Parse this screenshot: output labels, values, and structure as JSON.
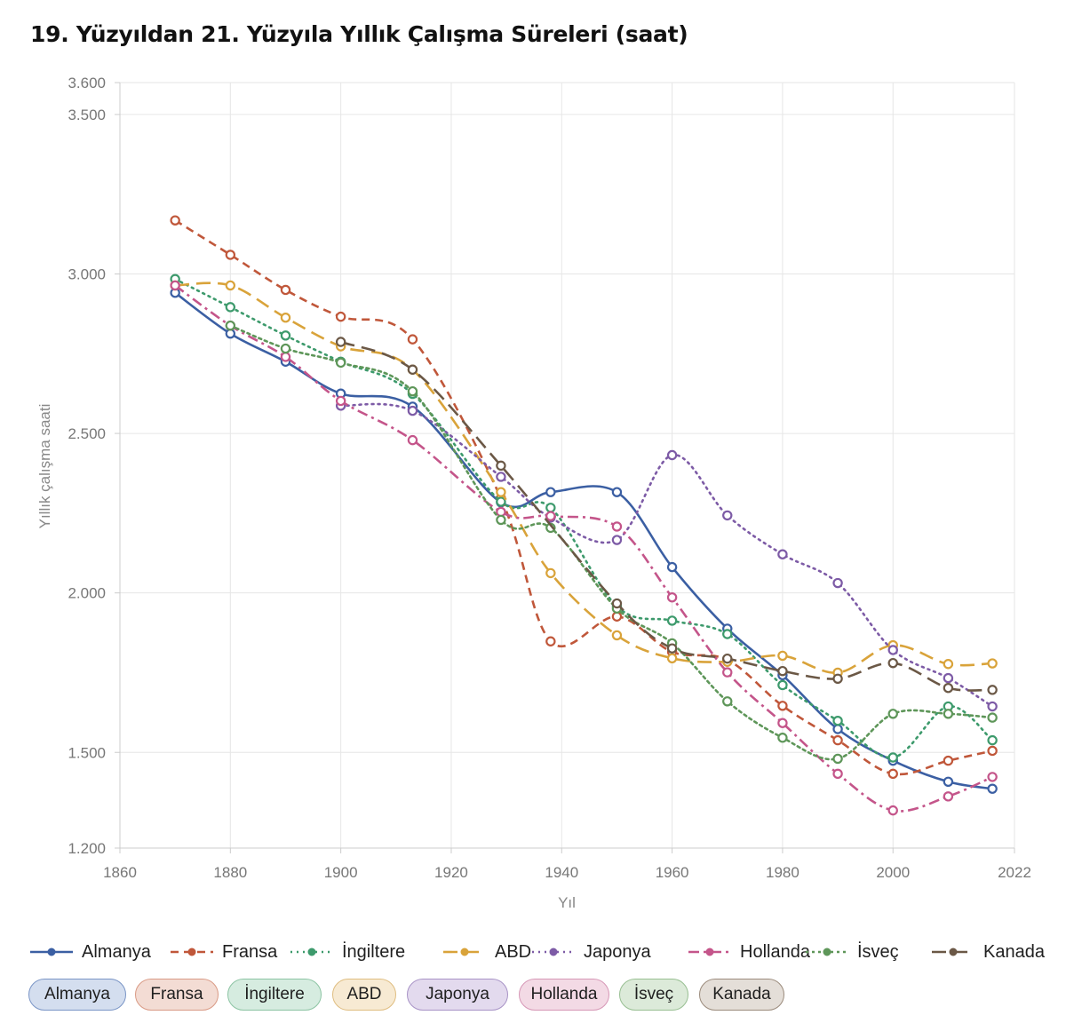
{
  "title": "19. Yüzyıldan 21. Yüzyıla Yıllık Çalışma Süreleri (saat)",
  "chart_data": {
    "type": "line",
    "title": "19. Yüzyıldan 21. Yüzyıla Yıllık Çalışma Süreleri (saat)",
    "xlabel": "Yıl",
    "ylabel": "Yıllık çalışma saati",
    "xlim": [
      1860,
      2022
    ],
    "ylim": [
      1200,
      3600
    ],
    "x_ticks": [
      1860,
      1880,
      1900,
      1920,
      1940,
      1960,
      1980,
      2000,
      2022
    ],
    "x_tick_labels": [
      "1860",
      "1880",
      "1900",
      "1920",
      "1940",
      "1960",
      "1980",
      "2000",
      "2022"
    ],
    "y_ticks": [
      1200,
      1500,
      2000,
      2500,
      3000,
      3500,
      3600
    ],
    "y_tick_labels": [
      "1.200",
      "1.500",
      "2.000",
      "2.500",
      "3.000",
      "3.500",
      "3.600"
    ],
    "grid": true,
    "legend_position": "bottom",
    "series": [
      {
        "name": "Almanya",
        "color": "#3b5fa3",
        "dash": "solid",
        "points": [
          [
            1870,
            2941
          ],
          [
            1880,
            2813
          ],
          [
            1890,
            2725
          ],
          [
            1900,
            2625
          ],
          [
            1913,
            2584
          ],
          [
            1929,
            2284
          ],
          [
            1938,
            2316
          ],
          [
            1950,
            2316
          ],
          [
            1960,
            2081
          ],
          [
            1970,
            1888
          ],
          [
            1980,
            1742
          ],
          [
            1990,
            1573
          ],
          [
            2000,
            1474
          ],
          [
            2010,
            1408
          ],
          [
            2018,
            1386
          ]
        ]
      },
      {
        "name": "Fransa",
        "color": "#c0573a",
        "dash": "dashed",
        "points": [
          [
            1870,
            3168
          ],
          [
            1880,
            3060
          ],
          [
            1890,
            2950
          ],
          [
            1900,
            2866
          ],
          [
            1913,
            2795
          ],
          [
            1929,
            2297
          ],
          [
            1938,
            1848
          ],
          [
            1950,
            1926
          ],
          [
            1960,
            1815
          ],
          [
            1970,
            1790
          ],
          [
            1980,
            1646
          ],
          [
            1990,
            1538
          ],
          [
            2000,
            1433
          ],
          [
            2010,
            1474
          ],
          [
            2018,
            1505
          ]
        ]
      },
      {
        "name": "İngiltere",
        "color": "#3d9a6c",
        "dash": "dotted",
        "points": [
          [
            1870,
            2984
          ],
          [
            1880,
            2896
          ],
          [
            1890,
            2807
          ],
          [
            1900,
            2725
          ],
          [
            1913,
            2624
          ],
          [
            1929,
            2286
          ],
          [
            1938,
            2267
          ],
          [
            1950,
            1958
          ],
          [
            1960,
            1913
          ],
          [
            1970,
            1871
          ],
          [
            1980,
            1711
          ],
          [
            1990,
            1599
          ],
          [
            2000,
            1484
          ],
          [
            2010,
            1644
          ],
          [
            2018,
            1538
          ]
        ]
      },
      {
        "name": "ABD",
        "color": "#d9a33a",
        "dash": "longdash",
        "points": [
          [
            1870,
            2964
          ],
          [
            1880,
            2964
          ],
          [
            1890,
            2863
          ],
          [
            1900,
            2773
          ],
          [
            1913,
            2700
          ],
          [
            1929,
            2316
          ],
          [
            1938,
            2062
          ],
          [
            1950,
            1867
          ],
          [
            1960,
            1795
          ],
          [
            1970,
            1784
          ],
          [
            1980,
            1803
          ],
          [
            1990,
            1750
          ],
          [
            2000,
            1836
          ],
          [
            2010,
            1777
          ],
          [
            2018,
            1779
          ]
        ]
      },
      {
        "name": "Japonya",
        "color": "#7d5ba6",
        "dash": "dotted",
        "points": [
          [
            1900,
            2587
          ],
          [
            1913,
            2571
          ],
          [
            1929,
            2364
          ],
          [
            1938,
            2236
          ],
          [
            1950,
            2166
          ],
          [
            1960,
            2432
          ],
          [
            1970,
            2243
          ],
          [
            1980,
            2121
          ],
          [
            1990,
            2031
          ],
          [
            2000,
            1821
          ],
          [
            2010,
            1733
          ],
          [
            2018,
            1644
          ]
        ]
      },
      {
        "name": "Hollanda",
        "color": "#c4558a",
        "dash": "dashdot",
        "points": [
          [
            1870,
            2964
          ],
          [
            1880,
            2838
          ],
          [
            1890,
            2740
          ],
          [
            1900,
            2602
          ],
          [
            1913,
            2479
          ],
          [
            1929,
            2254
          ],
          [
            1938,
            2241
          ],
          [
            1950,
            2208
          ],
          [
            1960,
            1986
          ],
          [
            1970,
            1751
          ],
          [
            1980,
            1592
          ],
          [
            1990,
            1433
          ],
          [
            2000,
            1318
          ],
          [
            2010,
            1362
          ],
          [
            2018,
            1423
          ]
        ]
      },
      {
        "name": "İsveç",
        "color": "#5e9659",
        "dash": "densedot",
        "points": [
          [
            1880,
            2838
          ],
          [
            1890,
            2766
          ],
          [
            1900,
            2722
          ],
          [
            1913,
            2632
          ],
          [
            1929,
            2229
          ],
          [
            1938,
            2204
          ],
          [
            1950,
            1951
          ],
          [
            1960,
            1842
          ],
          [
            1970,
            1660
          ],
          [
            1980,
            1546
          ],
          [
            1990,
            1480
          ],
          [
            2000,
            1621
          ],
          [
            2010,
            1621
          ],
          [
            2018,
            1609
          ]
        ]
      },
      {
        "name": "Kanada",
        "color": "#6b5846",
        "dash": "longdash",
        "points": [
          [
            1900,
            2787
          ],
          [
            1913,
            2700
          ],
          [
            1929,
            2399
          ],
          [
            1950,
            1967
          ],
          [
            1960,
            1826
          ],
          [
            1970,
            1794
          ],
          [
            1980,
            1755
          ],
          [
            1990,
            1731
          ],
          [
            2000,
            1780
          ],
          [
            2010,
            1702
          ],
          [
            2018,
            1696
          ]
        ]
      }
    ]
  },
  "chips": [
    {
      "label": "Almanya",
      "fill": "#d4deef",
      "border": "#7a95c6"
    },
    {
      "label": "Fransa",
      "fill": "#f3dcd4",
      "border": "#d99a85"
    },
    {
      "label": "İngiltere",
      "fill": "#d6ece0",
      "border": "#8cc4a3"
    },
    {
      "label": "ABD",
      "fill": "#f7ead3",
      "border": "#dfbd80"
    },
    {
      "label": "Japonya",
      "fill": "#e3daee",
      "border": "#a893c6"
    },
    {
      "label": "Hollanda",
      "fill": "#f3dae5",
      "border": "#d697b6"
    },
    {
      "label": "İsveç",
      "fill": "#dcead9",
      "border": "#98bf92"
    },
    {
      "label": "Kanada",
      "fill": "#e4ded8",
      "border": "#9b8b7c"
    }
  ]
}
